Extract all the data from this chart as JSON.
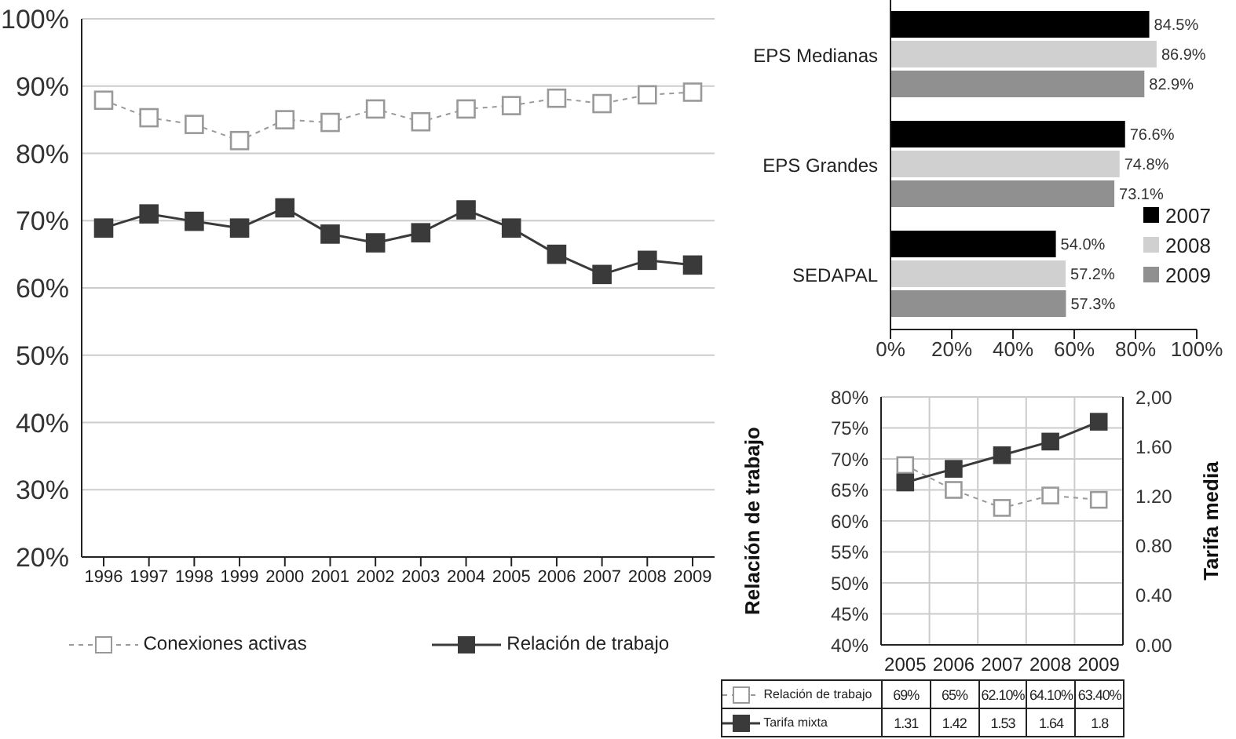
{
  "chart_data": [
    {
      "type": "line",
      "categories": [
        "1996",
        "1997",
        "1998",
        "1999",
        "2000",
        "2001",
        "2002",
        "2003",
        "2004",
        "2005",
        "2006",
        "2007",
        "2008",
        "2009"
      ],
      "series": [
        {
          "name": "Conexiones activas",
          "color": "#999999",
          "line_style": "dashed",
          "values": [
            87.9,
            85.3,
            84.3,
            81.9,
            85.0,
            84.6,
            86.6,
            84.7,
            86.6,
            87.1,
            88.2,
            87.4,
            88.7,
            89.1
          ]
        },
        {
          "name": "Relación de trabajo",
          "color": "#3a3a3a",
          "line_style": "solid",
          "values": [
            68.9,
            71.0,
            69.9,
            68.9,
            71.9,
            68.0,
            66.7,
            68.2,
            71.6,
            68.9,
            65.0,
            62.0,
            64.1,
            63.4
          ]
        }
      ],
      "ylim": [
        20,
        100
      ],
      "yticks": [
        {
          "value": 20,
          "label": "20%"
        },
        {
          "value": 30,
          "label": "30%"
        },
        {
          "value": 40,
          "label": "40%"
        },
        {
          "value": 50,
          "label": "50%"
        },
        {
          "value": 60,
          "label": "60%"
        },
        {
          "value": 70,
          "label": "70%"
        },
        {
          "value": 80,
          "label": "80%"
        },
        {
          "value": 90,
          "label": "90%"
        },
        {
          "value": 100,
          "label": "100%"
        }
      ],
      "grid": "y",
      "legend": "bottom",
      "marker": "square"
    },
    {
      "type": "bar",
      "orientation": "horizontal",
      "categories": [
        "EPS Medianas",
        "EPS Grandes",
        "SEDAPAL"
      ],
      "series": [
        {
          "name": "2007",
          "color": "#000000",
          "values": [
            84.5,
            76.6,
            54.0
          ],
          "value_labels": [
            "84.5%",
            "76.6%",
            "54.0%"
          ]
        },
        {
          "name": "2008",
          "color": "#d0d0d0",
          "values": [
            86.9,
            74.8,
            57.2
          ],
          "value_labels": [
            "86.9%",
            "74.8%",
            "57.2%"
          ]
        },
        {
          "name": "2009",
          "color": "#909090",
          "values": [
            82.9,
            73.1,
            57.3
          ],
          "value_labels": [
            "82.9%",
            "73.1%",
            "57.3%"
          ]
        }
      ],
      "xlim": [
        0,
        100
      ],
      "xticks": [
        {
          "value": 0,
          "label": "0%"
        },
        {
          "value": 20,
          "label": "20%"
        },
        {
          "value": 40,
          "label": "40%"
        },
        {
          "value": 60,
          "label": "60%"
        },
        {
          "value": 80,
          "label": "80%"
        },
        {
          "value": 100,
          "label": "100%"
        }
      ],
      "grid": false,
      "legend": "bottom right"
    },
    {
      "type": "line",
      "categories": [
        "2005",
        "2006",
        "2007",
        "2008",
        "2009"
      ],
      "series": [
        {
          "name": "Relación de trabajo",
          "color": "#999999",
          "line_style": "dashed",
          "values": [
            69,
            65,
            62.1,
            64.1,
            63.4
          ],
          "value_labels": [
            "69%",
            "65%",
            "62.10%",
            "64.10%",
            "63.40%"
          ]
        },
        {
          "name": "Tarifa mixta",
          "color": "#3a3a3a",
          "line_style": "solid",
          "axis": "y2",
          "values": [
            1.31,
            1.42,
            1.53,
            1.64,
            1.8
          ],
          "value_labels": [
            "1.31",
            "1.42",
            "1.53",
            "1.64",
            "1.8"
          ]
        }
      ],
      "ylabel": "Relación de trabajo",
      "y2label": "Tarifa media",
      "ylim": [
        40,
        80
      ],
      "yticks": [
        {
          "value": 40,
          "label": "40%"
        },
        {
          "value": 45,
          "label": "45%"
        },
        {
          "value": 50,
          "label": "50%"
        },
        {
          "value": 55,
          "label": "55%"
        },
        {
          "value": 60,
          "label": "60%"
        },
        {
          "value": 65,
          "label": "65%"
        },
        {
          "value": 70,
          "label": "70%"
        },
        {
          "value": 75,
          "label": "75%"
        },
        {
          "value": 80,
          "label": "80%"
        }
      ],
      "y2lim": [
        0,
        2
      ],
      "y2ticks": [
        {
          "value": 0,
          "label": "0.00"
        },
        {
          "value": 0.4,
          "label": "0.40"
        },
        {
          "value": 0.8,
          "label": "0.80"
        },
        {
          "value": 1.2,
          "label": "1.20"
        },
        {
          "value": 1.6,
          "label": "1.60"
        },
        {
          "value": 2,
          "label": "2,00"
        }
      ],
      "grid": true,
      "legend": "bottom",
      "marker": "square"
    }
  ]
}
